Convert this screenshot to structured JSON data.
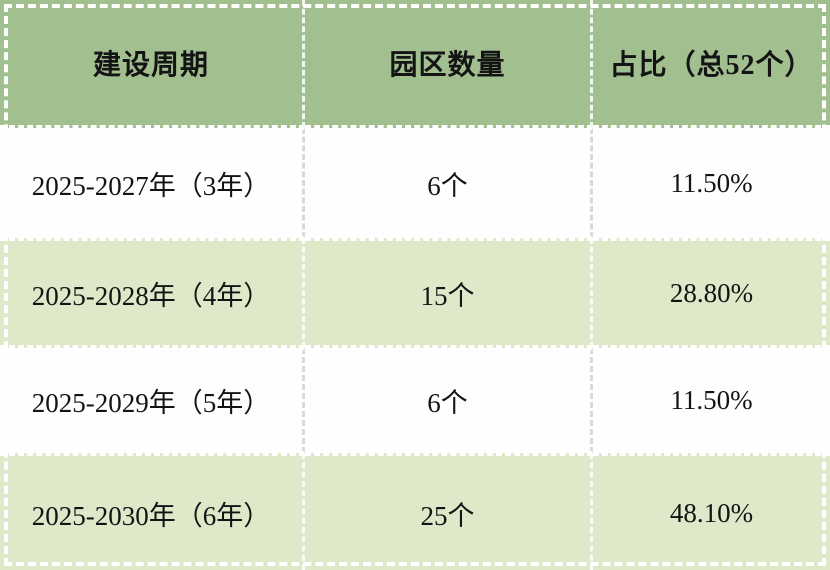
{
  "colors": {
    "header_bg": "#a2bf90",
    "row_white_bg": "#fefefe",
    "row_green_bg": "#dfe8c8",
    "divider_on_green": "rgba(255,255,255,0.85)",
    "divider_on_white": "#d9d9d9",
    "hline": "#ffffff",
    "text": "#141414"
  },
  "table": {
    "columns": [
      {
        "label": "建设周期"
      },
      {
        "label": "园区数量"
      },
      {
        "label": "占比（总52个）"
      }
    ],
    "rows": [
      {
        "period": "2025-2027年（3年）",
        "count": "6个",
        "share": "11.50%"
      },
      {
        "period": "2025-2028年（4年）",
        "count": "15个",
        "share": "28.80%"
      },
      {
        "period": "2025-2029年（5年）",
        "count": "6个",
        "share": "11.50%"
      },
      {
        "period": "2025-2030年（6年）",
        "count": "25个",
        "share": "48.10%"
      }
    ]
  },
  "chart_data": {
    "type": "table",
    "columns": [
      "建设周期",
      "园区数量",
      "占比（总52个）"
    ],
    "rows": [
      [
        "2025-2027年（3年）",
        "6个",
        "11.50%"
      ],
      [
        "2025-2028年（4年）",
        "15个",
        "28.80%"
      ],
      [
        "2025-2029年（5年）",
        "6个",
        "11.50%"
      ],
      [
        "2025-2030年（6年）",
        "25个",
        "48.10%"
      ]
    ],
    "counts": [
      6,
      15,
      6,
      25
    ],
    "shares_percent": [
      11.5,
      28.8,
      11.5,
      48.1
    ],
    "total_note": "总52个"
  }
}
